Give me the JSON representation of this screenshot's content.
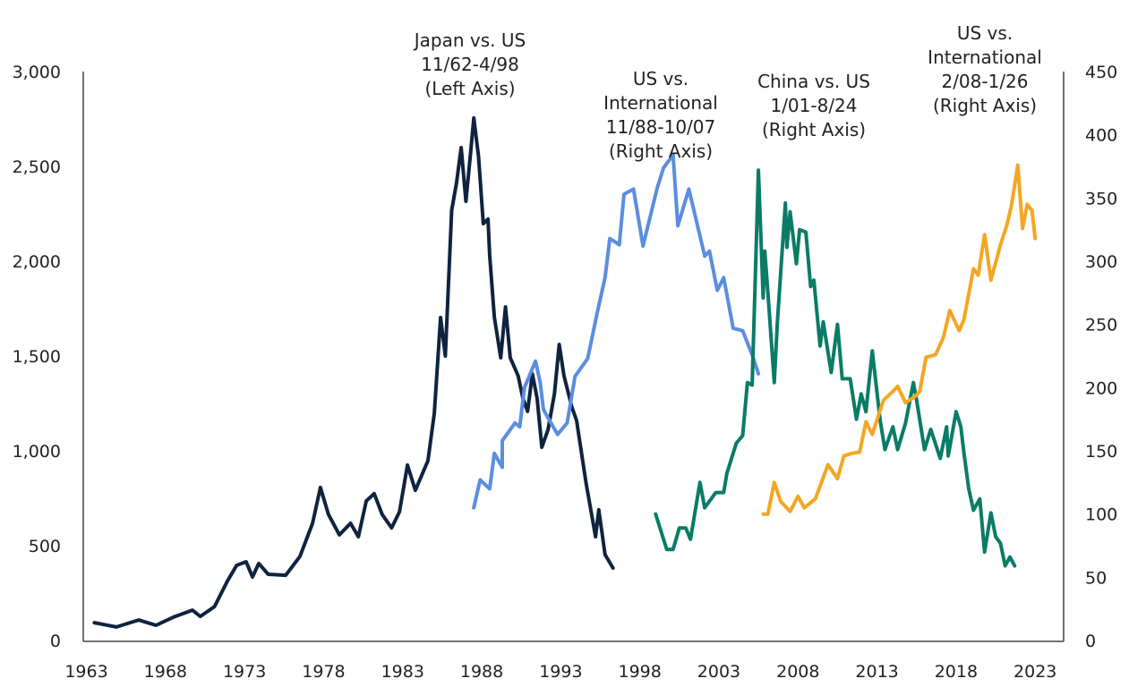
{
  "chart_data": {
    "type": "line",
    "title": "",
    "xlabel": "",
    "ylabel_left": "",
    "ylabel_right": "",
    "xlim": [
      1962.8,
      2024.8
    ],
    "ylim_left": [
      0,
      3000
    ],
    "ylim_right": [
      0,
      450
    ],
    "grid": false,
    "x_ticks": [
      "1963",
      "1968",
      "1973",
      "1978",
      "1983",
      "1988",
      "1993",
      "1998",
      "2003",
      "2008",
      "2013",
      "2018",
      "2023"
    ],
    "y_left_ticks": [
      "0",
      "500",
      "1,000",
      "1,500",
      "2,000",
      "2,500",
      "3,000"
    ],
    "y_right_ticks": [
      "0",
      "50",
      "100",
      "150",
      "200",
      "250",
      "300",
      "350",
      "400",
      "450"
    ],
    "annotations": [
      {
        "lines": [
          "Japan vs. US",
          "11/62-4/98",
          "(Left Axis)"
        ]
      },
      {
        "lines": [
          "US vs.",
          "International",
          "11/88-10/07",
          "(Right Axis)"
        ]
      },
      {
        "lines": [
          "China vs. US",
          "1/01-8/24",
          "(Right Axis)"
        ]
      },
      {
        "lines": [
          "US vs.",
          "International",
          "2/08-1/26",
          "(Right Axis)"
        ]
      }
    ],
    "series": [
      {
        "name": "Japan vs. US 11/62-4/98",
        "axis": "left",
        "color": "#0f2340",
        "x": [
          1963.5,
          1964.9,
          1966.3,
          1967.4,
          1968.5,
          1969.7,
          1970.2,
          1971.1,
          1971.9,
          1972.5,
          1973.1,
          1973.5,
          1973.9,
          1974.5,
          1975.6,
          1976.5,
          1977.3,
          1977.8,
          1978.3,
          1979.0,
          1979.7,
          1980.2,
          1980.7,
          1981.2,
          1981.7,
          1982.3,
          1982.8,
          1983.3,
          1983.8,
          1984.6,
          1985.0,
          1985.4,
          1985.7,
          1986.1,
          1986.4,
          1986.7,
          1987.0,
          1987.3,
          1987.5,
          1987.8,
          1988.1,
          1988.4,
          1988.5,
          1988.8,
          1989.2,
          1989.5,
          1989.8,
          1990.3,
          1990.6,
          1990.9,
          1991.2,
          1991.5,
          1991.8,
          1992.2,
          1992.6,
          1992.9,
          1993.2,
          1993.7,
          1994.0,
          1994.6,
          1995.2,
          1995.4,
          1995.8,
          1996.3
        ],
        "y": [
          94,
          71,
          108,
          80,
          123,
          160,
          127,
          179,
          311,
          396,
          415,
          335,
          406,
          349,
          344,
          443,
          618,
          807,
          665,
          557,
          618,
          547,
          736,
          774,
          665,
          594,
          679,
          925,
          792,
          948,
          1198,
          1703,
          1500,
          2269,
          2410,
          2599,
          2316,
          2575,
          2755,
          2552,
          2198,
          2222,
          2033,
          1703,
          1491,
          1759,
          1491,
          1396,
          1278,
          1208,
          1406,
          1278,
          1019,
          1113,
          1302,
          1561,
          1396,
          1231,
          1160,
          830,
          547,
          689,
          453,
          382
        ]
      },
      {
        "name": "US vs. International 11/88-10/07",
        "axis": "right",
        "color": "#5b8de0",
        "x": [
          1987.5,
          1987.9,
          1988.5,
          1988.8,
          1989.3,
          1989.3,
          1990.1,
          1990.4,
          1990.7,
          1991.4,
          1991.7,
          1991.9,
          1992.2,
          1992.8,
          1993.4,
          1993.9,
          1994.7,
          1995.3,
          1995.8,
          1996.1,
          1996.7,
          1997.0,
          1997.6,
          1998.2,
          1999.1,
          1999.5,
          2000.1,
          2000.4,
          2001.1,
          2001.8,
          2002.1,
          2002.4,
          2002.9,
          2003.3,
          2003.9,
          2004.5,
          2005.1,
          2005.5
        ],
        "y": [
          105,
          127,
          120,
          148,
          137,
          158,
          172,
          169,
          200,
          221,
          204,
          183,
          176,
          163,
          172,
          209,
          223,
          259,
          287,
          318,
          313,
          353,
          357,
          312,
          358,
          374,
          384,
          328,
          357,
          320,
          304,
          308,
          277,
          287,
          247,
          245,
          226,
          211
        ]
      },
      {
        "name": "China vs. US 1/01-8/24",
        "axis": "right",
        "color": "#0a7c66",
        "x": [
          1999.0,
          1999.3,
          1999.7,
          2000.1,
          2000.5,
          2000.9,
          2001.2,
          2001.8,
          2002.1,
          2002.8,
          2003.3,
          2003.5,
          2004.1,
          2004.5,
          2004.8,
          2005.1,
          2005.5,
          2005.8,
          2005.9,
          2006.1,
          2006.5,
          2006.7,
          2007.2,
          2007.3,
          2007.5,
          2007.9,
          2008.1,
          2008.5,
          2008.8,
          2009.0,
          2009.4,
          2009.6,
          2010.1,
          2010.5,
          2010.8,
          2011.3,
          2011.7,
          2012.0,
          2012.3,
          2012.7,
          2013.2,
          2013.5,
          2014.0,
          2014.3,
          2014.8,
          2015.3,
          2015.5,
          2016.0,
          2016.4,
          2017.0,
          2017.4,
          2017.5,
          2018.0,
          2018.3,
          2018.5,
          2018.8,
          2019.1,
          2019.5,
          2019.8,
          2020.2,
          2020.5,
          2020.8,
          2021.1,
          2021.4,
          2021.7
        ],
        "y": [
          100,
          88,
          72,
          72,
          89,
          89,
          80,
          125,
          105,
          117,
          117,
          132,
          156,
          162,
          204,
          202,
          372,
          271,
          308,
          275,
          204,
          252,
          346,
          311,
          339,
          298,
          325,
          323,
          280,
          285,
          233,
          252,
          212,
          250,
          207,
          207,
          175,
          195,
          181,
          229,
          174,
          151,
          169,
          151,
          172,
          204,
          190,
          151,
          167,
          144,
          169,
          146,
          181,
          169,
          148,
          120,
          103,
          112,
          70,
          101,
          82,
          77,
          59,
          66,
          59
        ]
      },
      {
        "name": "US vs. International 2/08-1/26",
        "axis": "right",
        "color": "#f5a623",
        "x": [
          2005.8,
          2006.1,
          2006.5,
          2006.9,
          2007.5,
          2008.0,
          2008.4,
          2009.1,
          2009.9,
          2010.5,
          2010.9,
          2011.4,
          2011.9,
          2012.3,
          2012.7,
          2013.4,
          2014.0,
          2014.3,
          2014.8,
          2015.4,
          2015.7,
          2016.1,
          2016.7,
          2017.2,
          2017.6,
          2018.2,
          2018.5,
          2019.1,
          2019.4,
          2019.8,
          2020.2,
          2020.8,
          2021.2,
          2021.5,
          2021.9,
          2022.2,
          2022.5,
          2022.8,
          2023.0
        ],
        "y": [
          100,
          100,
          125,
          110,
          102,
          114,
          105,
          112,
          139,
          128,
          146,
          148,
          149,
          173,
          163,
          190,
          197,
          201,
          188,
          193,
          197,
          224,
          226,
          240,
          261,
          245,
          254,
          294,
          289,
          321,
          285,
          313,
          328,
          344,
          376,
          326,
          345,
          340,
          318
        ]
      }
    ]
  }
}
